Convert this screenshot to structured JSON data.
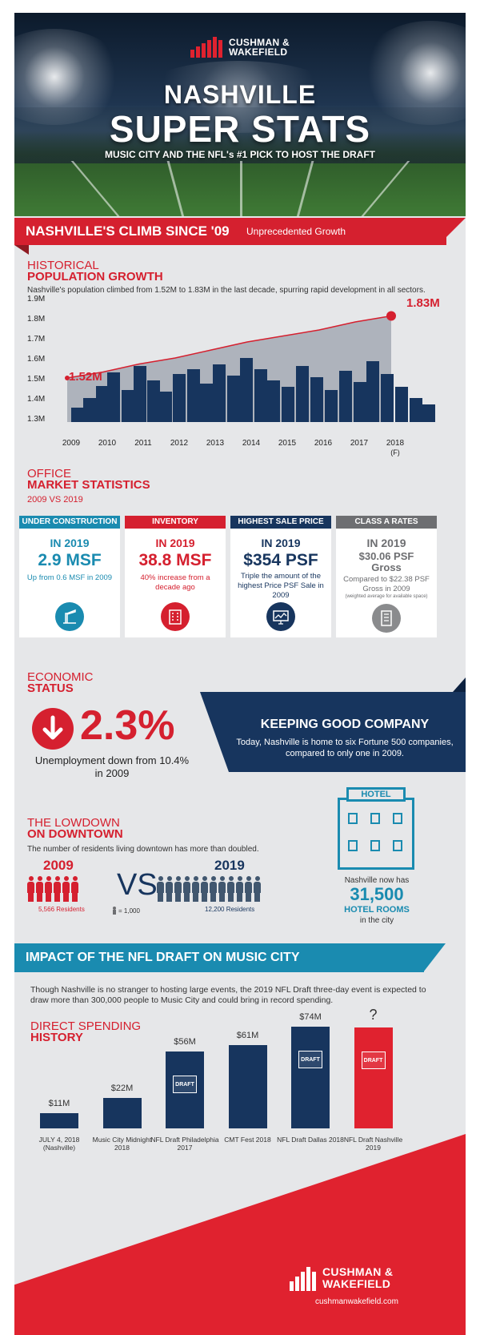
{
  "brand": {
    "name_line1": "CUSHMAN &",
    "name_line2": "WAKEFIELD",
    "url": "cushmanwakefield.com"
  },
  "hero": {
    "title_line1": "NASHVILLE",
    "title_line2": "SUPER STATS",
    "subtitle": "MUSIC CITY AND THE NFL's #1 PICK TO HOST THE DRAFT"
  },
  "banner": {
    "title": "NASHVILLE'S CLIMB SINCE '09",
    "subtitle": "Unprecedented Growth"
  },
  "population": {
    "heading_small": "HISTORICAL",
    "heading_big": "POPULATION GROWTH",
    "description": "Nashville's population climbed from 1.52M to 1.83M in the last decade, spurring rapid development in all sectors.",
    "start_label": "1.52M",
    "end_label": "1.83M"
  },
  "chart_data": {
    "type": "line",
    "x": [
      "2009",
      "2010",
      "2011",
      "2012",
      "2013",
      "2014",
      "2015",
      "2016",
      "2017",
      "2018"
    ],
    "x_notes": [
      "",
      "",
      "",
      "",
      "",
      "",
      "",
      "",
      "",
      "(F)"
    ],
    "values": [
      1.52,
      1.55,
      1.59,
      1.62,
      1.66,
      1.7,
      1.73,
      1.76,
      1.8,
      1.83
    ],
    "y_ticks": [
      "1.3M",
      "1.4M",
      "1.5M",
      "1.6M",
      "1.7M",
      "1.8M",
      "1.9M"
    ],
    "ylim": [
      1.3,
      1.9
    ],
    "colors": {
      "line": "#d5202f",
      "area": "#aeb3bc",
      "skyline": "#17355e"
    }
  },
  "office": {
    "heading_small": "OFFICE",
    "heading_big": "MARKET STATISTICS",
    "period": "2009 VS 2019",
    "cards": [
      {
        "header": "UNDER CONSTRUCTION",
        "year": "IN 2019",
        "value": "2.9 MSF",
        "desc": "Up from 0.6 MSF in 2009",
        "note": "",
        "icon": "crane-icon",
        "color": "#1a8bb0"
      },
      {
        "header": "INVENTORY",
        "year": "IN 2019",
        "value": "38.8 MSF",
        "desc": "40% increase from a decade ago",
        "note": "",
        "icon": "building-icon",
        "color": "#d5202f"
      },
      {
        "header": "HIGHEST SALE PRICE",
        "year": "IN 2019",
        "value": "$354 PSF",
        "desc": "Triple the amount of the highest Price PSF Sale in 2009",
        "note": "",
        "icon": "chart-screen-icon",
        "color": "#17355e"
      },
      {
        "header": "CLASS A RATES",
        "year": "IN 2019",
        "value": "$30.06 PSF Gross",
        "desc": "Compared to $22.38 PSF Gross in 2009",
        "note": "(weighted average for available space)",
        "icon": "office-tower-icon",
        "color": "#6d6e71"
      }
    ]
  },
  "economic": {
    "heading_small": "ECONOMIC",
    "heading_big": "STATUS",
    "rate": "2.3%",
    "rate_desc": "Unemployment down from 10.4% in 2009",
    "company_title": "KEEPING GOOD COMPANY",
    "company_desc": "Today, Nashville is home to six Fortune 500 companies, compared to only one in 2009."
  },
  "downtown": {
    "heading_small": "THE LOWDOWN",
    "heading_big": "ON DOWNTOWN",
    "description": "The number of residents living downtown has more than doubled.",
    "year_a": "2009",
    "residents_a": "5,566 Residents",
    "year_b": "2019",
    "residents_b": "12,200 Residents",
    "vs": "VS",
    "legend": "= 1,000",
    "hotel_sign": "HOTEL",
    "hotel_pre": "Nashville now has",
    "hotel_value": "31,500",
    "hotel_label": "HOTEL ROOMS",
    "hotel_post": "in the city"
  },
  "impact": {
    "title": "IMPACT OF THE NFL DRAFT ON MUSIC CITY",
    "description": "Though Nashville is no stranger to hosting large events, the 2019 NFL Draft three-day event is expected to draw more than 300,000 people to Music City and could bring in record spending.",
    "heading_line1": "DIRECT SPENDING",
    "heading_line2": "HISTORY",
    "draft_badge": "DRAFT"
  },
  "spending": {
    "type": "bar",
    "categories": [
      "JULY 4, 2018 (Nashville)",
      "Music City Midnight 2018",
      "NFL Draft Philadelphia 2017",
      "CMT Fest 2018",
      "NFL Draft Dallas 2018",
      "NFL Draft Nashville 2019"
    ],
    "values": [
      11,
      22,
      56,
      61,
      74,
      null
    ],
    "labels": [
      "$11M",
      "$22M",
      "$56M",
      "$61M",
      "$74M",
      "?"
    ],
    "unit": "$M",
    "draft_flags": [
      false,
      false,
      true,
      false,
      true,
      true
    ]
  }
}
